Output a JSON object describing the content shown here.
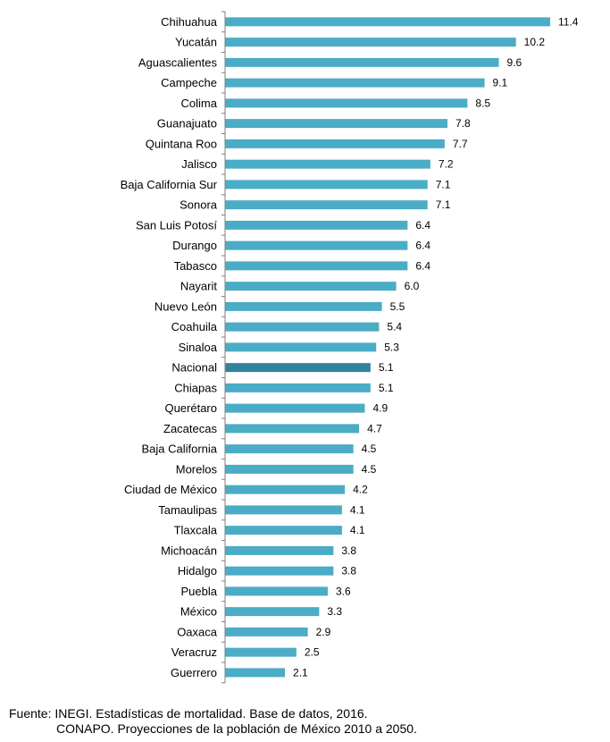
{
  "chart_data": {
    "type": "bar",
    "orientation": "horizontal",
    "categories": [
      "Chihuahua",
      "Yucatán",
      "Aguascalientes",
      "Campeche",
      "Colima",
      "Guanajuato",
      "Quintana Roo",
      "Jalisco",
      "Baja California Sur",
      "Sonora",
      "San Luis Potosí",
      "Durango",
      "Tabasco",
      "Nayarit",
      "Nuevo León",
      "Coahuila",
      "Sinaloa",
      "Nacional",
      "Chiapas",
      "Querétaro",
      "Zacatecas",
      "Baja California",
      "Morelos",
      "Ciudad de México",
      "Tamaulipas",
      "Tlaxcala",
      "Michoacán",
      "Hidalgo",
      "Puebla",
      "México",
      "Oaxaca",
      "Veracruz",
      "Guerrero"
    ],
    "values": [
      11.4,
      10.2,
      9.6,
      9.1,
      8.5,
      7.8,
      7.7,
      7.2,
      7.1,
      7.1,
      6.4,
      6.4,
      6.4,
      6.0,
      5.5,
      5.4,
      5.3,
      5.1,
      5.1,
      4.9,
      4.7,
      4.5,
      4.5,
      4.2,
      4.1,
      4.1,
      3.8,
      3.8,
      3.6,
      3.3,
      2.9,
      2.5,
      2.1
    ],
    "value_labels": [
      "11.4",
      "10.2",
      "9.6",
      "9.1",
      "8.5",
      "7.8",
      "7.7",
      "7.2",
      "7.1",
      "7.1",
      "6.4",
      "6.4",
      "6.4",
      "6.0",
      "5.5",
      "5.4",
      "5.3",
      "5.1",
      "5.1",
      "4.9",
      "4.7",
      "4.5",
      "4.5",
      "4.2",
      "4.1",
      "4.1",
      "3.8",
      "3.8",
      "3.6",
      "3.3",
      "2.9",
      "2.5",
      "2.1"
    ],
    "highlight_category": "Nacional",
    "xlim": [
      0,
      12
    ],
    "grid": false,
    "legend": "none",
    "title": "",
    "xlabel": "",
    "ylabel": ""
  },
  "colors": {
    "bar": "#4bacc6",
    "highlight": "#31849b",
    "axis": "#7f7f7f"
  },
  "source": {
    "line1": "Fuente: INEGI. Estadísticas de mortalidad. Base de datos, 2016.",
    "line2": "CONAPO. Proyecciones de la población de México 2010 a 2050."
  }
}
